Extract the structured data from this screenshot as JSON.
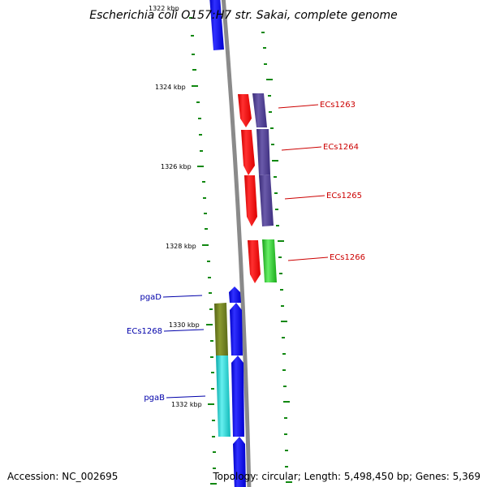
{
  "title": "Escherichia coli O157:H7 str. Sakai, complete genome",
  "footer": {
    "accession": "Accession: NC_002695",
    "topology": "Topology: circular; Length: 5,498,450 bp; Genes: 5,369"
  },
  "scale_labels": [
    "1322 kbp",
    "1324 kbp",
    "1326 kbp",
    "1328 kbp",
    "1330 kbp",
    "1332 kbp"
  ],
  "gene_labels": [
    {
      "text": "ECs1263",
      "side": "right",
      "color": "#cc0000"
    },
    {
      "text": "ECs1264",
      "side": "right",
      "color": "#cc0000"
    },
    {
      "text": "ECs1265",
      "side": "right",
      "color": "#cc0000"
    },
    {
      "text": "ECs1266",
      "side": "right",
      "color": "#cc0000"
    },
    {
      "text": "pgaD",
      "side": "left",
      "color": "#0000aa"
    },
    {
      "text": "ECs1268",
      "side": "left",
      "color": "#0000aa"
    },
    {
      "text": "pgaB",
      "side": "left",
      "color": "#0000aa"
    }
  ],
  "colors": {
    "backbone": "#888888",
    "ticks": "#118811",
    "forward_cds": "#0000ee",
    "reverse_cds": "#ee0000",
    "purple_feature": "#4a3a8a",
    "green_feature": "#22bb22",
    "olive_feature": "#6b7a1a",
    "cyan_feature": "#11cccc"
  }
}
